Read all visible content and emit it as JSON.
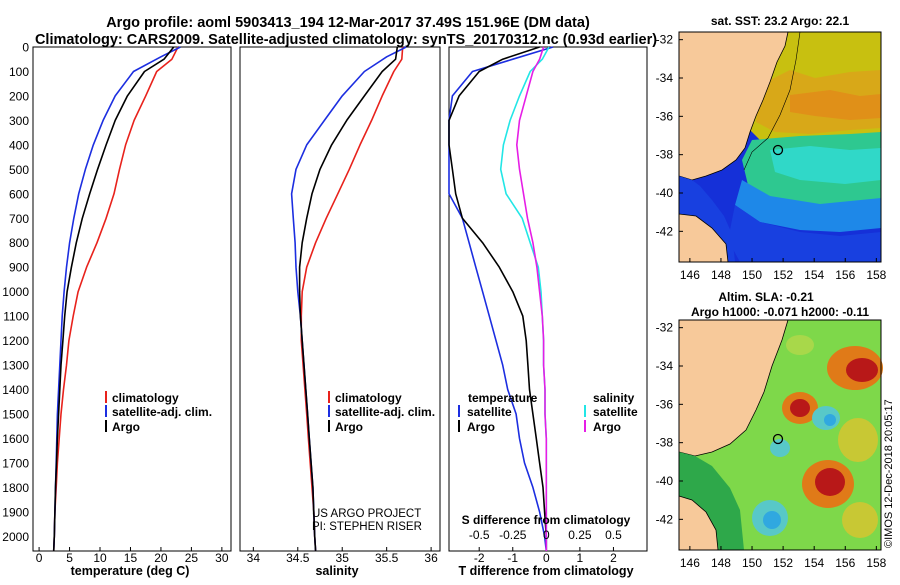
{
  "header": {
    "line1": "Argo profile: aoml 5903413_194 12-Mar-2017 37.49S 151.96E (DM data)",
    "line2": "Climatology: CARS2009. Satellite-adjusted climatology: synTS_20170312.nc (0.93d earlier)"
  },
  "credit": "©IMOS 12-Dec-2018 20:05:17",
  "colors": {
    "climatology": "#e8221c",
    "satellite": "#1c2ee0",
    "argo": "#000000",
    "sal_satellite": "#22e6e6",
    "sal_argo": "#e61ee6",
    "land": "#f7c99a"
  },
  "depth_axis": {
    "ylim": [
      0,
      2060
    ],
    "ticks": [
      0,
      100,
      200,
      300,
      400,
      500,
      600,
      700,
      800,
      900,
      1000,
      1100,
      1200,
      1300,
      1400,
      1500,
      1600,
      1700,
      1800,
      1900,
      2000
    ]
  },
  "panels": {
    "temperature": {
      "xlabel": "temperature (deg C)",
      "xlim": [
        -1,
        31.5
      ],
      "ticks": [
        0,
        5,
        10,
        15,
        20,
        25,
        30
      ],
      "legend": [
        "climatology",
        "satellite-adj. clim.",
        "Argo"
      ]
    },
    "salinity": {
      "xlabel": "salinity",
      "xlim": [
        33.85,
        36.1
      ],
      "ticks": [
        34,
        34.5,
        35,
        35.5,
        36
      ],
      "legend": [
        "climatology",
        "satellite-adj. clim.",
        "Argo"
      ],
      "note1": "US ARGO PROJECT",
      "note2": "PI: STEPHEN RISER"
    },
    "difference": {
      "xlabel": "T difference from climatology",
      "xlim": [
        -2.9,
        3.0
      ],
      "ticks": [
        -2,
        -1,
        0,
        1,
        2
      ],
      "s_label": "S difference from climatology",
      "s_ticks": [
        "-0.5",
        "-0.25",
        "0",
        "0.25",
        "0.5"
      ],
      "legend_temperature": {
        "title": "temperature",
        "items": [
          "satellite",
          "Argo"
        ]
      },
      "legend_salinity": {
        "title": "salinity",
        "items": [
          "satellite",
          "Argo"
        ]
      }
    }
  },
  "maps": {
    "sst": {
      "title": "sat. SST: 23.2 Argo: 22.1",
      "xticks": [
        146,
        148,
        150,
        152,
        154,
        156,
        158
      ],
      "yticks": [
        -32,
        -34,
        -36,
        -38,
        -40,
        -42
      ]
    },
    "sla": {
      "title1": "Altim. SLA: -0.21",
      "title2": "Argo h1000: -0.071 h2000: -0.11",
      "xticks": [
        146,
        148,
        150,
        152,
        154,
        156,
        158
      ],
      "yticks": [
        -32,
        -34,
        -36,
        -38,
        -40,
        -42
      ]
    }
  },
  "chart_data": [
    {
      "type": "line",
      "title": "",
      "xlabel": "temperature (deg C)",
      "ylabel": "",
      "xlim": [
        -1,
        31.5
      ],
      "ylim": [
        2060,
        0
      ],
      "series": [
        {
          "name": "climatology",
          "points": [
            [
              22.8,
              0
            ],
            [
              21.8,
              50
            ],
            [
              19.3,
              100
            ],
            [
              17.5,
              200
            ],
            [
              15.6,
              300
            ],
            [
              14.2,
              400
            ],
            [
              13.2,
              500
            ],
            [
              12.3,
              600
            ],
            [
              11.0,
              700
            ],
            [
              9.5,
              800
            ],
            [
              7.8,
              900
            ],
            [
              6.4,
              1000
            ],
            [
              5.6,
              1100
            ],
            [
              4.9,
              1200
            ],
            [
              4.5,
              1300
            ],
            [
              4.0,
              1400
            ],
            [
              3.6,
              1500
            ],
            [
              3.3,
              1600
            ],
            [
              3.0,
              1700
            ],
            [
              2.8,
              1800
            ],
            [
              2.6,
              1900
            ],
            [
              2.5,
              2000
            ],
            [
              2.4,
              2060
            ]
          ]
        },
        {
          "name": "satellite-adj. clim.",
          "points": [
            [
              23.2,
              0
            ],
            [
              20.0,
              40
            ],
            [
              15.5,
              100
            ],
            [
              12.5,
              200
            ],
            [
              10.5,
              300
            ],
            [
              8.9,
              400
            ],
            [
              7.6,
              500
            ],
            [
              6.5,
              600
            ],
            [
              5.7,
              700
            ],
            [
              5.0,
              800
            ],
            [
              4.5,
              900
            ],
            [
              4.1,
              1000
            ],
            [
              3.8,
              1100
            ],
            [
              3.6,
              1200
            ],
            [
              3.4,
              1300
            ],
            [
              3.2,
              1400
            ],
            [
              3.0,
              1500
            ],
            [
              2.9,
              1600
            ],
            [
              2.8,
              1700
            ],
            [
              2.7,
              1800
            ],
            [
              2.6,
              1900
            ],
            [
              2.5,
              2000
            ],
            [
              2.4,
              2060
            ]
          ]
        },
        {
          "name": "Argo",
          "points": [
            [
              22.1,
              0
            ],
            [
              20.5,
              50
            ],
            [
              17.3,
              100
            ],
            [
              14.5,
              200
            ],
            [
              12.5,
              300
            ],
            [
              11.0,
              400
            ],
            [
              9.6,
              500
            ],
            [
              8.3,
              600
            ],
            [
              7.1,
              700
            ],
            [
              6.1,
              800
            ],
            [
              5.3,
              900
            ],
            [
              4.6,
              1000
            ],
            [
              4.2,
              1100
            ],
            [
              3.9,
              1200
            ],
            [
              3.6,
              1300
            ],
            [
              3.4,
              1400
            ],
            [
              3.2,
              1500
            ],
            [
              3.0,
              1600
            ],
            [
              2.85,
              1700
            ],
            [
              2.7,
              1800
            ],
            [
              2.6,
              1900
            ],
            [
              2.5,
              2000
            ],
            [
              2.4,
              2060
            ]
          ]
        }
      ]
    },
    {
      "type": "line",
      "title": "",
      "xlabel": "salinity",
      "ylabel": "",
      "xlim": [
        33.85,
        36.1
      ],
      "ylim": [
        2060,
        0
      ],
      "series": [
        {
          "name": "climatology",
          "points": [
            [
              35.68,
              0
            ],
            [
              35.67,
              50
            ],
            [
              35.58,
              100
            ],
            [
              35.45,
              200
            ],
            [
              35.33,
              300
            ],
            [
              35.2,
              400
            ],
            [
              35.08,
              500
            ],
            [
              34.95,
              600
            ],
            [
              34.82,
              700
            ],
            [
              34.7,
              800
            ],
            [
              34.6,
              900
            ],
            [
              34.55,
              1000
            ],
            [
              34.54,
              1100
            ],
            [
              34.54,
              1200
            ],
            [
              34.56,
              1300
            ],
            [
              34.58,
              1400
            ],
            [
              34.6,
              1500
            ],
            [
              34.62,
              1600
            ],
            [
              34.64,
              1700
            ],
            [
              34.66,
              1800
            ],
            [
              34.68,
              1900
            ],
            [
              34.69,
              2000
            ],
            [
              34.7,
              2060
            ]
          ]
        },
        {
          "name": "satellite-adj. clim.",
          "points": [
            [
              35.72,
              0
            ],
            [
              35.5,
              40
            ],
            [
              35.25,
              100
            ],
            [
              35.0,
              200
            ],
            [
              34.8,
              300
            ],
            [
              34.6,
              400
            ],
            [
              34.48,
              500
            ],
            [
              34.43,
              600
            ],
            [
              34.45,
              700
            ],
            [
              34.47,
              800
            ],
            [
              34.48,
              900
            ],
            [
              34.5,
              1000
            ],
            [
              34.53,
              1100
            ],
            [
              34.55,
              1200
            ],
            [
              34.57,
              1300
            ],
            [
              34.59,
              1400
            ],
            [
              34.61,
              1500
            ],
            [
              34.63,
              1600
            ],
            [
              34.65,
              1700
            ],
            [
              34.67,
              1800
            ],
            [
              34.68,
              1900
            ],
            [
              34.69,
              2000
            ],
            [
              34.7,
              2060
            ]
          ]
        },
        {
          "name": "Argo",
          "points": [
            [
              35.62,
              0
            ],
            [
              35.6,
              50
            ],
            [
              35.45,
              100
            ],
            [
              35.25,
              200
            ],
            [
              35.05,
              300
            ],
            [
              34.88,
              400
            ],
            [
              34.75,
              500
            ],
            [
              34.66,
              600
            ],
            [
              34.6,
              700
            ],
            [
              34.55,
              800
            ],
            [
              34.52,
              900
            ],
            [
              34.52,
              1000
            ],
            [
              34.53,
              1100
            ],
            [
              34.55,
              1200
            ],
            [
              34.57,
              1300
            ],
            [
              34.59,
              1400
            ],
            [
              34.61,
              1500
            ],
            [
              34.63,
              1600
            ],
            [
              34.65,
              1700
            ],
            [
              34.67,
              1800
            ],
            [
              34.68,
              1900
            ],
            [
              34.69,
              2000
            ],
            [
              34.7,
              2060
            ]
          ]
        }
      ]
    },
    {
      "type": "line",
      "title": "",
      "xlabel": "T difference from climatology",
      "ylabel": "",
      "xlim": [
        -2.9,
        3.0
      ],
      "ylim": [
        2060,
        0
      ],
      "series": [
        {
          "name": "satellite",
          "points": [
            [
              0.2,
              0
            ],
            [
              -1.0,
              50
            ],
            [
              -2.2,
              100
            ],
            [
              -2.8,
              200
            ],
            [
              -3.0,
              300
            ],
            [
              -3.2,
              400
            ],
            [
              -3.3,
              500
            ],
            [
              -2.9,
              600
            ],
            [
              -2.5,
              700
            ],
            [
              -2.3,
              800
            ],
            [
              -2.1,
              900
            ],
            [
              -1.9,
              1000
            ],
            [
              -1.7,
              1100
            ],
            [
              -1.5,
              1200
            ],
            [
              -1.3,
              1300
            ],
            [
              -1.15,
              1400
            ],
            [
              -0.9,
              1500
            ],
            [
              -0.8,
              1600
            ],
            [
              -0.65,
              1700
            ],
            [
              -0.4,
              1800
            ],
            [
              -0.2,
              1900
            ],
            [
              -0.05,
              2000
            ],
            [
              0,
              2060
            ]
          ]
        },
        {
          "name": "Argo",
          "points": [
            [
              -0.2,
              0
            ],
            [
              -1.3,
              50
            ],
            [
              -2.0,
              100
            ],
            [
              -2.6,
              200
            ],
            [
              -3.0,
              300
            ],
            [
              -2.9,
              400
            ],
            [
              -2.8,
              500
            ],
            [
              -2.7,
              600
            ],
            [
              -2.5,
              700
            ],
            [
              -1.9,
              800
            ],
            [
              -1.4,
              900
            ],
            [
              -1.0,
              1000
            ],
            [
              -0.7,
              1100
            ],
            [
              -0.6,
              1200
            ],
            [
              -0.55,
              1300
            ],
            [
              -0.5,
              1400
            ],
            [
              -0.4,
              1500
            ],
            [
              -0.3,
              1600
            ],
            [
              -0.2,
              1700
            ],
            [
              -0.1,
              1800
            ],
            [
              -0.05,
              1900
            ],
            [
              0,
              2000
            ],
            [
              0,
              2060
            ]
          ]
        },
        {
          "name": "satellite",
          "points": [
            [
              0.02,
              0
            ],
            [
              -0.03,
              50
            ],
            [
              -0.12,
              100
            ],
            [
              -0.2,
              200
            ],
            [
              -0.27,
              300
            ],
            [
              -0.32,
              400
            ],
            [
              -0.34,
              500
            ],
            [
              -0.3,
              600
            ],
            [
              -0.18,
              700
            ],
            [
              -0.12,
              800
            ],
            [
              -0.06,
              900
            ],
            [
              -0.04,
              1000
            ],
            [
              -0.03,
              1100
            ],
            [
              -0.02,
              1200
            ],
            [
              -0.02,
              1300
            ],
            [
              -0.01,
              1400
            ],
            [
              -0.01,
              1500
            ],
            [
              0,
              1600
            ],
            [
              0,
              1700
            ],
            [
              0,
              1800
            ],
            [
              0,
              1900
            ],
            [
              0,
              2000
            ],
            [
              0,
              2060
            ]
          ]
        },
        {
          "name": "Argo",
          "points": [
            [
              -0.02,
              0
            ],
            [
              -0.05,
              50
            ],
            [
              -0.1,
              100
            ],
            [
              -0.15,
              200
            ],
            [
              -0.2,
              300
            ],
            [
              -0.22,
              400
            ],
            [
              -0.2,
              500
            ],
            [
              -0.17,
              600
            ],
            [
              -0.14,
              700
            ],
            [
              -0.1,
              800
            ],
            [
              -0.07,
              900
            ],
            [
              -0.05,
              1000
            ],
            [
              -0.03,
              1100
            ],
            [
              -0.02,
              1200
            ],
            [
              -0.02,
              1300
            ],
            [
              -0.01,
              1400
            ],
            [
              -0.01,
              1500
            ],
            [
              0,
              1600
            ],
            [
              0,
              1700
            ],
            [
              0,
              1800
            ],
            [
              0,
              1900
            ],
            [
              0,
              2000
            ],
            [
              0,
              2060
            ]
          ]
        }
      ]
    }
  ]
}
